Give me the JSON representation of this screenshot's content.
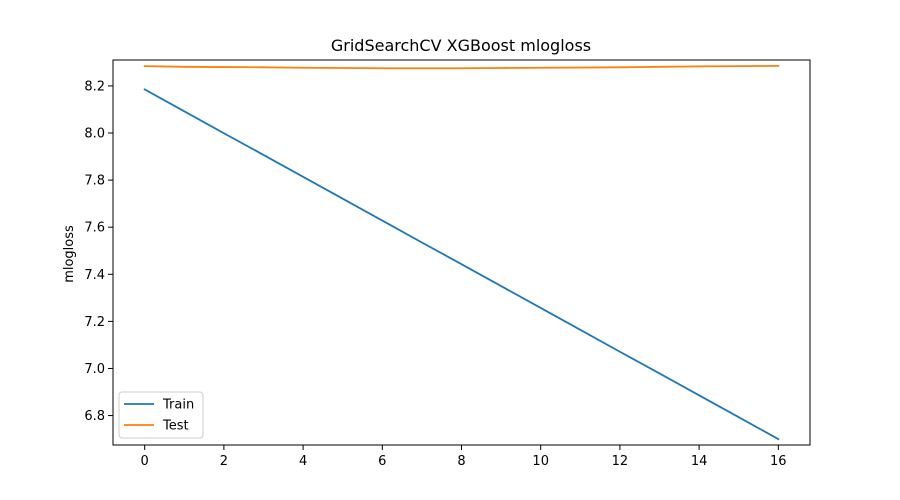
{
  "chart_data": {
    "type": "line",
    "title": "GridSearchCV XGBoost mlogloss",
    "xlabel": "",
    "ylabel": "mlogloss",
    "xlim": [
      -0.8,
      16.8
    ],
    "ylim": [
      6.675,
      8.31
    ],
    "xticks": [
      0,
      2,
      4,
      6,
      8,
      10,
      12,
      14,
      16
    ],
    "xtick_labels": [
      "0",
      "2",
      "4",
      "6",
      "8",
      "10",
      "12",
      "14",
      "16"
    ],
    "yticks": [
      6.8,
      7.0,
      7.2,
      7.4,
      7.6,
      7.8,
      8.0,
      8.2
    ],
    "ytick_labels": [
      "6.8",
      "7.0",
      "7.2",
      "7.4",
      "7.6",
      "7.8",
      "8.0",
      "8.2"
    ],
    "grid": false,
    "legend_position": "lower-left",
    "x": [
      0,
      1,
      2,
      3,
      4,
      5,
      6,
      7,
      8,
      9,
      10,
      11,
      12,
      13,
      14,
      15,
      16
    ],
    "series": [
      {
        "name": "Train",
        "color": "#1f77b4",
        "values": [
          8.185,
          8.092,
          7.999,
          7.907,
          7.814,
          7.721,
          7.628,
          7.535,
          7.443,
          7.35,
          7.257,
          7.164,
          7.071,
          6.979,
          6.886,
          6.793,
          6.7
        ]
      },
      {
        "name": "Test",
        "color": "#ff7f0e",
        "values": [
          8.284,
          8.281,
          8.28,
          8.279,
          8.277,
          8.276,
          8.275,
          8.275,
          8.275,
          8.276,
          8.277,
          8.278,
          8.279,
          8.281,
          8.283,
          8.284,
          8.285
        ]
      }
    ]
  }
}
